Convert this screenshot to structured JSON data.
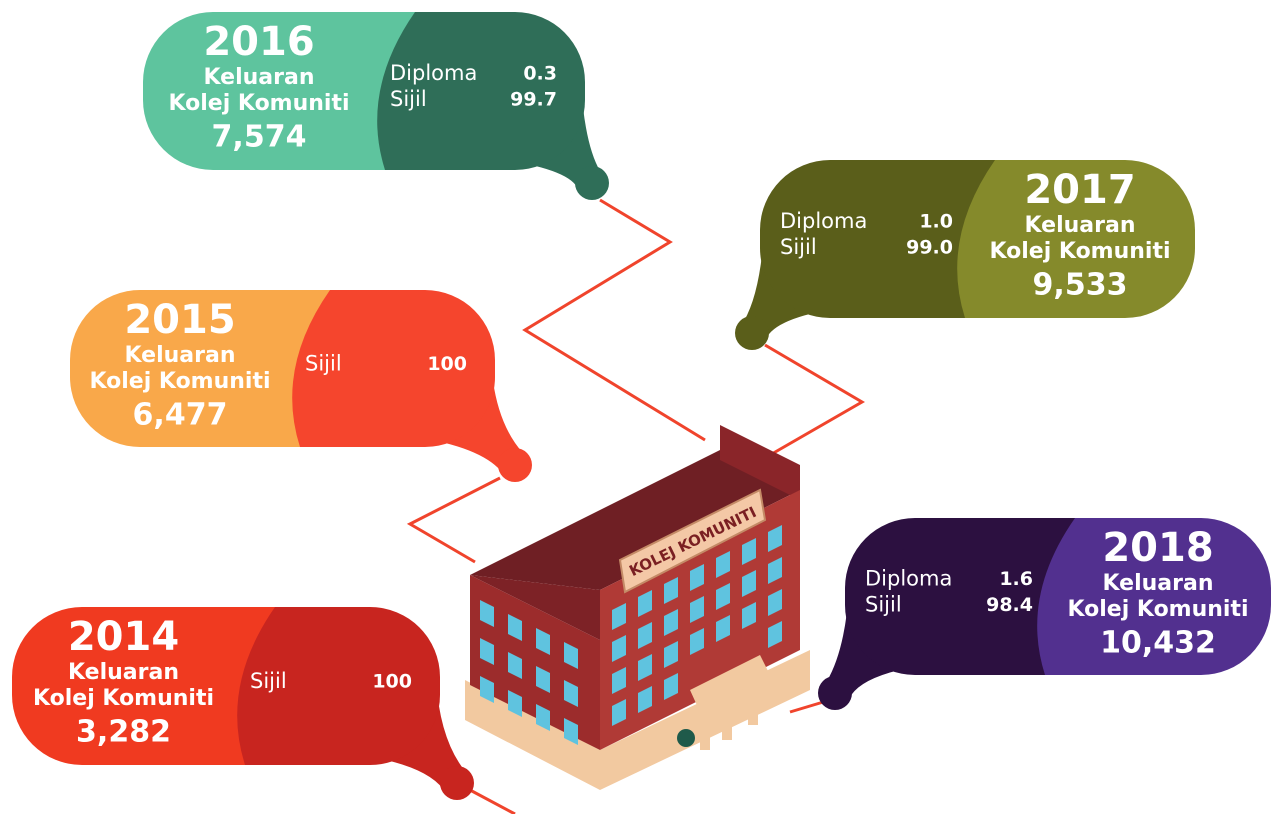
{
  "bubbles": [
    {
      "year": "2016",
      "label": [
        "Keluaran",
        "Kolej Komuniti"
      ],
      "total": "7,574",
      "items": [
        {
          "name": "Diploma",
          "value": "0.3"
        },
        {
          "name": "Sijil",
          "value": "99.7"
        }
      ]
    },
    {
      "year": "2017",
      "label": [
        "Keluaran",
        "Kolej Komuniti"
      ],
      "total": "9,533",
      "items": [
        {
          "name": "Diploma",
          "value": "1.0"
        },
        {
          "name": "Sijil",
          "value": "99.0"
        }
      ]
    },
    {
      "year": "2015",
      "label": [
        "Keluaran",
        "Kolej Komuniti"
      ],
      "total": "6,477",
      "items": [
        {
          "name": "Sijil",
          "value": "100"
        }
      ]
    },
    {
      "year": "2014",
      "label": [
        "Keluaran",
        "Kolej Komuniti"
      ],
      "total": "3,282",
      "items": [
        {
          "name": "Sijil",
          "value": "100"
        }
      ]
    },
    {
      "year": "2018",
      "label": [
        "Keluaran",
        "Kolej Komuniti"
      ],
      "total": "10,432",
      "items": [
        {
          "name": "Diploma",
          "value": "1.6"
        },
        {
          "name": "Sijil",
          "value": "98.4"
        }
      ]
    }
  ],
  "building": {
    "sign": "KOLEJ KOMUNITI"
  }
}
